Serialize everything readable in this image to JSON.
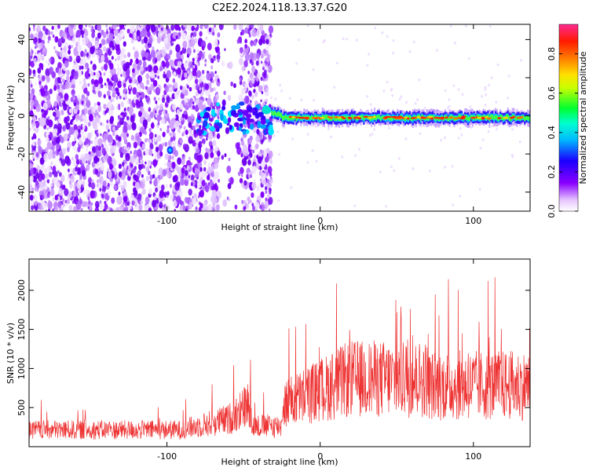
{
  "title": "C2E2.2024.118.13.37.G20",
  "chart_data": [
    {
      "type": "heatmap",
      "xlabel": "Height of straight line (km)",
      "ylabel": "Frequency (Hz)",
      "xlim": [
        -190,
        137
      ],
      "ylim": [
        -50,
        48
      ],
      "xticks": [
        -100,
        0,
        100
      ],
      "yticks": [
        -40,
        -20,
        0,
        20,
        40
      ],
      "colorbar": {
        "label": "Normalized spectral amplitude",
        "range": [
          0,
          0.95
        ],
        "ticks": [
          0.0,
          0.2,
          0.4,
          0.6,
          0.8
        ]
      },
      "features": {
        "noise_region_x": [
          -190,
          -32
        ],
        "gap_x": [
          -66,
          -52
        ],
        "signal_trace_x": [
          -32,
          137
        ],
        "signal_frequency": -1
      }
    },
    {
      "type": "line",
      "xlabel": "Height of straight line (km)",
      "ylabel": "SNR (10 * v/v)",
      "xlim": [
        -190,
        137
      ],
      "ylim": [
        0,
        2400
      ],
      "xticks": [
        -100,
        0,
        100
      ],
      "yticks": [
        500,
        1000,
        1500,
        2000
      ],
      "series": [
        {
          "color": "#ee3333"
        }
      ]
    }
  ]
}
